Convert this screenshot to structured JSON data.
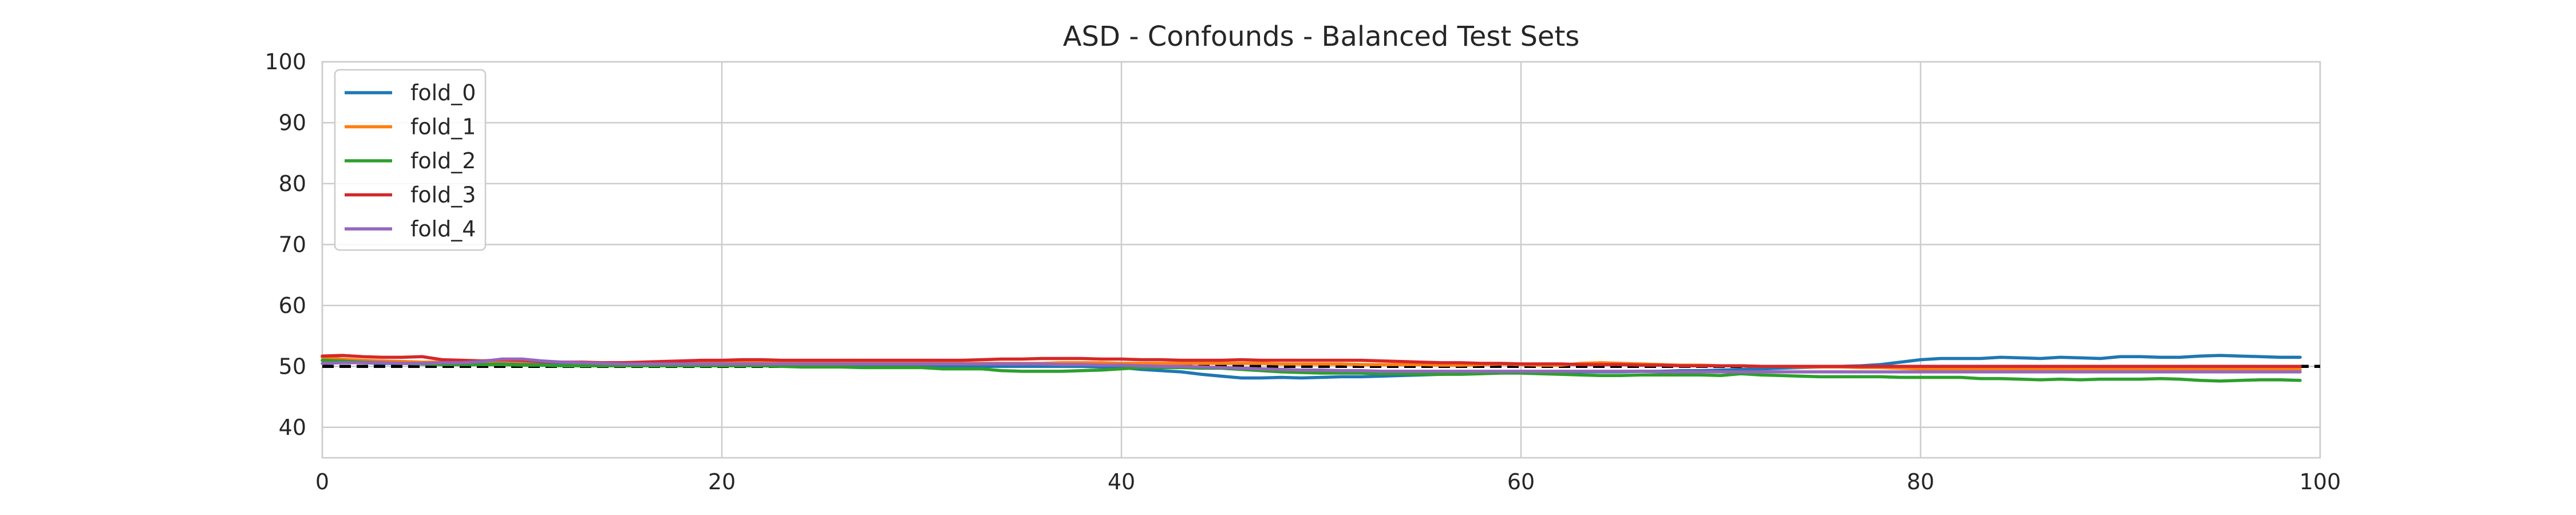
{
  "chart_data": {
    "type": "line",
    "title": "ASD - Confounds - Balanced Test Sets",
    "xlabel": "",
    "ylabel": "",
    "xlim": [
      0,
      100
    ],
    "ylim": [
      35,
      100
    ],
    "xticks": [
      0,
      20,
      40,
      60,
      80,
      100
    ],
    "yticks": [
      40,
      50,
      60,
      70,
      80,
      90,
      100
    ],
    "grid": true,
    "legend_position": "top-left",
    "reference_line": {
      "y": 50,
      "style": "dashed",
      "color": "#000000"
    },
    "series": [
      {
        "name": "fold_0",
        "color": "#1f77b4",
        "values": [
          51.0,
          50.8,
          50.6,
          50.5,
          50.5,
          50.4,
          50.4,
          50.5,
          50.6,
          50.8,
          50.7,
          50.5,
          50.4,
          50.3,
          50.2,
          50.2,
          50.2,
          50.2,
          50.2,
          50.2,
          50.2,
          50.2,
          50.2,
          50.1,
          50.1,
          50.1,
          50.1,
          50.1,
          50.0,
          50.0,
          50.0,
          50.0,
          50.0,
          50.0,
          50.0,
          50.0,
          50.0,
          50.0,
          50.0,
          49.9,
          49.8,
          49.5,
          49.3,
          49.1,
          48.7,
          48.4,
          48.1,
          48.1,
          48.2,
          48.1,
          48.2,
          48.3,
          48.3,
          48.4,
          48.5,
          48.6,
          48.7,
          48.8,
          48.9,
          49.0,
          49.0,
          49.0,
          49.0,
          49.1,
          49.1,
          49.1,
          49.2,
          49.2,
          49.3,
          49.3,
          49.4,
          49.5,
          49.6,
          49.7,
          49.8,
          49.9,
          50.0,
          50.1,
          50.3,
          50.7,
          51.1,
          51.3,
          51.3,
          51.3,
          51.5,
          51.4,
          51.3,
          51.5,
          51.4,
          51.3,
          51.6,
          51.6,
          51.5,
          51.5,
          51.7,
          51.8,
          51.7,
          51.6,
          51.5,
          51.5
        ]
      },
      {
        "name": "fold_1",
        "color": "#ff7f0e",
        "values": [
          51.5,
          51.2,
          51.0,
          50.9,
          50.8,
          50.7,
          50.7,
          50.7,
          50.8,
          50.9,
          50.8,
          50.8,
          50.7,
          50.6,
          50.6,
          50.6,
          50.6,
          50.6,
          50.6,
          50.6,
          50.6,
          50.6,
          50.6,
          50.6,
          50.6,
          50.6,
          50.5,
          50.5,
          50.5,
          50.5,
          50.5,
          50.5,
          50.5,
          50.5,
          50.5,
          50.5,
          50.5,
          50.6,
          50.6,
          50.6,
          50.5,
          50.5,
          50.5,
          50.5,
          50.5,
          50.5,
          50.5,
          50.5,
          50.4,
          50.4,
          50.4,
          50.4,
          50.3,
          50.3,
          50.3,
          50.3,
          50.2,
          50.2,
          50.3,
          50.4,
          50.3,
          50.2,
          50.2,
          50.5,
          50.6,
          50.5,
          50.4,
          50.3,
          50.2,
          50.2,
          50.1,
          50.1,
          50.0,
          50.0,
          49.9,
          49.9,
          49.9,
          49.8,
          49.8,
          49.7,
          49.6,
          49.5,
          49.5,
          49.5,
          49.5,
          49.5,
          49.5,
          49.5,
          49.5,
          49.5,
          49.5,
          49.5,
          49.5,
          49.5,
          49.5,
          49.5,
          49.5,
          49.5,
          49.5,
          49.5
        ]
      },
      {
        "name": "fold_2",
        "color": "#2ca02c",
        "values": [
          51.0,
          50.9,
          50.7,
          50.6,
          50.5,
          50.4,
          50.3,
          50.3,
          50.3,
          50.3,
          50.2,
          50.2,
          50.1,
          50.1,
          50.1,
          50.1,
          50.1,
          50.1,
          50.1,
          50.1,
          50.1,
          50.1,
          50.1,
          50.0,
          49.9,
          49.9,
          49.9,
          49.8,
          49.8,
          49.8,
          49.8,
          49.6,
          49.6,
          49.6,
          49.3,
          49.2,
          49.2,
          49.2,
          49.3,
          49.4,
          49.6,
          49.8,
          49.8,
          49.8,
          49.7,
          49.7,
          49.5,
          49.3,
          49.1,
          49.0,
          48.9,
          48.9,
          48.9,
          48.8,
          48.8,
          48.7,
          48.7,
          48.7,
          48.8,
          48.9,
          48.9,
          48.8,
          48.7,
          48.6,
          48.5,
          48.5,
          48.6,
          48.6,
          48.6,
          48.6,
          48.5,
          48.8,
          48.6,
          48.5,
          48.4,
          48.3,
          48.3,
          48.3,
          48.3,
          48.2,
          48.2,
          48.2,
          48.2,
          48.0,
          48.0,
          47.9,
          47.8,
          47.9,
          47.8,
          47.9,
          47.9,
          47.9,
          48.0,
          47.9,
          47.7,
          47.6,
          47.7,
          47.8,
          47.8,
          47.7
        ]
      },
      {
        "name": "fold_3",
        "color": "#d62728",
        "values": [
          51.7,
          51.8,
          51.6,
          51.5,
          51.5,
          51.6,
          51.1,
          51.0,
          50.9,
          51.1,
          51.0,
          50.8,
          50.7,
          50.7,
          50.6,
          50.6,
          50.7,
          50.8,
          50.9,
          51.0,
          51.0,
          51.1,
          51.1,
          51.0,
          51.0,
          51.0,
          51.0,
          51.0,
          51.0,
          51.0,
          51.0,
          51.0,
          51.0,
          51.1,
          51.2,
          51.2,
          51.3,
          51.3,
          51.3,
          51.2,
          51.2,
          51.1,
          51.1,
          51.0,
          51.0,
          51.0,
          51.1,
          51.0,
          51.0,
          51.0,
          51.0,
          51.0,
          51.0,
          50.9,
          50.8,
          50.7,
          50.6,
          50.6,
          50.5,
          50.5,
          50.4,
          50.4,
          50.4,
          50.3,
          50.3,
          50.3,
          50.2,
          50.2,
          50.1,
          50.1,
          50.1,
          50.1,
          50.0,
          50.0,
          50.0,
          50.0,
          50.0,
          50.0,
          50.0,
          50.0,
          50.0,
          50.0,
          50.0,
          50.0,
          50.0,
          50.0,
          50.0,
          50.0,
          50.0,
          50.0,
          50.0,
          50.0,
          50.0,
          50.0,
          50.0,
          50.0,
          50.0,
          50.0,
          50.0,
          50.0
        ]
      },
      {
        "name": "fold_4",
        "color": "#9467bd",
        "values": [
          50.5,
          50.6,
          50.6,
          50.6,
          50.5,
          50.5,
          50.6,
          50.6,
          50.8,
          51.2,
          51.2,
          50.9,
          50.7,
          50.6,
          50.5,
          50.4,
          50.4,
          50.4,
          50.4,
          50.4,
          50.4,
          50.4,
          50.4,
          50.4,
          50.4,
          50.4,
          50.4,
          50.4,
          50.4,
          50.4,
          50.4,
          50.4,
          50.4,
          50.4,
          50.4,
          50.4,
          50.4,
          50.3,
          50.3,
          50.2,
          50.2,
          50.1,
          50.0,
          50.0,
          49.9,
          49.8,
          49.7,
          49.6,
          49.5,
          49.4,
          49.4,
          49.3,
          49.3,
          49.2,
          49.2,
          49.2,
          49.2,
          49.2,
          49.2,
          49.2,
          49.2,
          49.2,
          49.2,
          49.2,
          49.2,
          49.2,
          49.2,
          49.1,
          49.1,
          49.1,
          49.1,
          49.1,
          49.1,
          49.1,
          49.1,
          49.1,
          49.1,
          49.1,
          49.1,
          49.1,
          49.1,
          49.1,
          49.1,
          49.1,
          49.1,
          49.1,
          49.1,
          49.1,
          49.1,
          49.1,
          49.1,
          49.1,
          49.1,
          49.1,
          49.1,
          49.1,
          49.1,
          49.1,
          49.1,
          49.1
        ]
      }
    ]
  }
}
